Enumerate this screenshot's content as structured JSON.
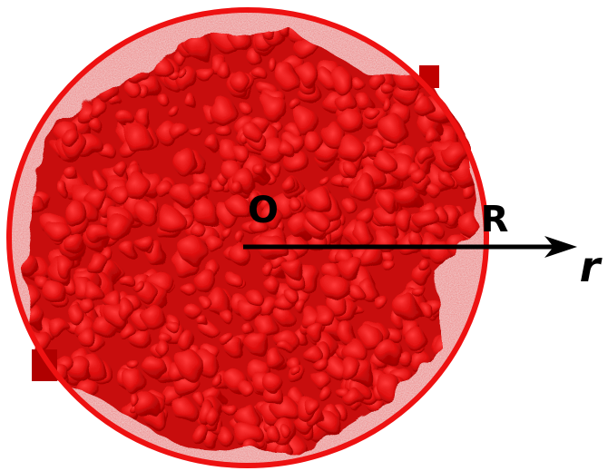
{
  "labels": {
    "center": "O",
    "radius": "R",
    "axis": "r"
  }
}
